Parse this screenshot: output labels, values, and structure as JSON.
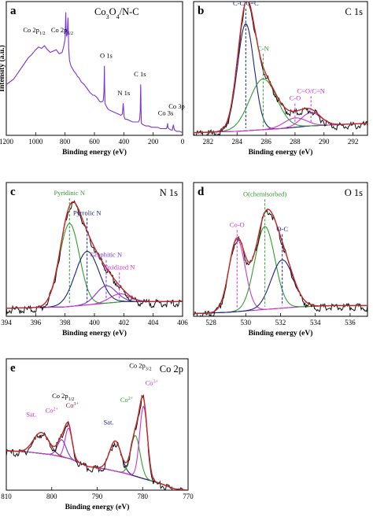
{
  "chart_data": [
    {
      "type": "line",
      "panel_label": "a",
      "title": "Co3O4/N-C",
      "xlabel": "Binding energy (eV)",
      "ylabel": "Intensity (a.u.)",
      "xlim": [
        1200,
        0
      ],
      "x_ticks": [
        1200,
        1000,
        800,
        600,
        400,
        200,
        0
      ],
      "y_ticks_shown": false,
      "series": [
        {
          "color": "#7a33d6",
          "shape": "survey",
          "x": [
            1200,
            1150,
            1100,
            1050,
            1030,
            1000,
            980,
            960,
            940,
            920,
            900,
            880,
            860,
            840,
            820,
            810,
            800,
            795,
            793,
            790,
            785,
            780,
            775,
            770,
            760,
            740,
            725,
            715,
            705,
            690,
            670,
            650,
            630,
            610,
            600,
            590,
            580,
            570,
            560,
            550,
            540,
            535,
            532,
            531,
            528,
            520,
            510,
            500,
            480,
            460,
            440,
            420,
            410,
            404,
            400,
            398,
            395,
            390,
            380,
            360,
            340,
            320,
            300,
            292,
            288,
            285,
            283,
            280,
            270,
            250,
            230,
            210,
            190,
            170,
            150,
            140,
            130,
            120,
            110,
            104,
            101,
            100,
            95,
            80,
            70,
            62,
            60,
            55,
            40,
            20,
            0
          ],
          "y": [
            0.38,
            0.42,
            0.5,
            0.58,
            0.6,
            0.64,
            0.66,
            0.65,
            0.67,
            0.64,
            0.62,
            0.63,
            0.64,
            0.61,
            0.62,
            0.66,
            0.72,
            0.92,
            0.8,
            0.74,
            0.76,
            0.88,
            0.65,
            0.56,
            0.52,
            0.48,
            0.46,
            0.44,
            0.43,
            0.4,
            0.38,
            0.35,
            0.32,
            0.3,
            0.3,
            0.29,
            0.28,
            0.26,
            0.25,
            0.25,
            0.26,
            0.32,
            0.52,
            0.4,
            0.24,
            0.22,
            0.2,
            0.19,
            0.18,
            0.17,
            0.16,
            0.15,
            0.16,
            0.24,
            0.18,
            0.14,
            0.13,
            0.12,
            0.12,
            0.11,
            0.1,
            0.1,
            0.1,
            0.12,
            0.18,
            0.38,
            0.2,
            0.09,
            0.08,
            0.07,
            0.07,
            0.06,
            0.06,
            0.06,
            0.05,
            0.05,
            0.05,
            0.05,
            0.05,
            0.07,
            0.09,
            0.06,
            0.05,
            0.04,
            0.04,
            0.08,
            0.06,
            0.04,
            0.03,
            0.03,
            0.02
          ]
        }
      ],
      "annotations": [
        {
          "text": "Co 2p",
          "sub": "1/2",
          "x": 1010,
          "y": 0.77
        },
        {
          "text": "Co 2p",
          "sub": "3/2",
          "x": 820,
          "y": 0.77
        },
        {
          "text": "O 1s",
          "x": 520,
          "y": 0.58
        },
        {
          "text": "N 1s",
          "x": 400,
          "y": 0.3
        },
        {
          "text": "C 1s",
          "x": 290,
          "y": 0.44
        },
        {
          "text": "Co 3s",
          "x": 115,
          "y": 0.15
        },
        {
          "text": "Co 3p",
          "x": 40,
          "y": 0.2
        }
      ]
    },
    {
      "type": "line",
      "panel_label": "b",
      "title": "C 1s",
      "xlabel": "Binding energy (eV)",
      "xlim": [
        281,
        293
      ],
      "x_ticks": [
        282,
        284,
        286,
        288,
        290,
        292
      ],
      "y_ticks_shown": false,
      "background": {
        "x": [
          281,
          284,
          287,
          289,
          291,
          293
        ],
        "y": [
          0.02,
          0.03,
          0.05,
          0.07,
          0.08,
          0.09
        ]
      },
      "series": [
        {
          "type": "gaussian",
          "center": 284.6,
          "amplitude": 0.8,
          "fwhm": 1.35,
          "color": "#1a237e"
        },
        {
          "type": "gaussian",
          "center": 285.8,
          "amplitude": 0.38,
          "fwhm": 2.2,
          "color": "#2e9e2e"
        },
        {
          "type": "gaussian",
          "center": 288.0,
          "amplitude": 0.07,
          "fwhm": 1.8,
          "color": "#cc33cc"
        },
        {
          "type": "gaussian",
          "center": 289.1,
          "amplitude": 0.1,
          "fwhm": 1.6,
          "color": "#cc33cc"
        }
      ],
      "markers": [
        {
          "text": "C-C/C=C",
          "x": 284.6,
          "color": "#1a237e"
        },
        {
          "text": "C-N",
          "x": 285.8,
          "color": "#2e9e2e"
        },
        {
          "text": "C-O",
          "x": 288.0,
          "color": "#cc33cc"
        },
        {
          "text": "C=O/C=N",
          "x": 289.1,
          "color": "#cc33cc"
        }
      ]
    },
    {
      "type": "line",
      "panel_label": "c",
      "title": "N 1s",
      "xlabel": "Binding energy (eV)",
      "xlim": [
        394,
        406
      ],
      "x_ticks": [
        394,
        396,
        398,
        400,
        402,
        404,
        406
      ],
      "y_ticks_shown": false,
      "background": {
        "x": [
          394,
          398,
          400,
          402,
          404,
          406
        ],
        "y": [
          0.06,
          0.07,
          0.09,
          0.11,
          0.11,
          0.11
        ]
      },
      "series": [
        {
          "type": "gaussian",
          "center": 398.3,
          "amplitude": 0.62,
          "fwhm": 1.6,
          "color": "#2e9e2e"
        },
        {
          "type": "gaussian",
          "center": 399.5,
          "amplitude": 0.4,
          "fwhm": 1.9,
          "color": "#1a237e"
        },
        {
          "type": "gaussian",
          "center": 400.8,
          "amplitude": 0.13,
          "fwhm": 1.6,
          "color": "#7a33d6"
        },
        {
          "type": "gaussian",
          "center": 401.7,
          "amplitude": 0.06,
          "fwhm": 1.6,
          "color": "#cc33cc"
        }
      ],
      "markers": [
        {
          "text": "Pyridinic N",
          "x": 398.3,
          "color": "#2e9e2e"
        },
        {
          "text": "Pyrrolic N",
          "x": 399.5,
          "color": "#1a237e"
        },
        {
          "text": "Graphitic N",
          "x": 400.8,
          "color": "#7a33d6"
        },
        {
          "text": "Oxidized N",
          "x": 401.7,
          "color": "#cc33cc"
        }
      ]
    },
    {
      "type": "line",
      "panel_label": "d",
      "title": "O 1s",
      "xlabel": "Binding energy (eV)",
      "xlim": [
        527,
        537
      ],
      "x_ticks": [
        528,
        530,
        532,
        534,
        536
      ],
      "y_ticks_shown": false,
      "background": {
        "x": [
          527,
          529,
          531,
          533,
          535,
          537
        ],
        "y": [
          0.02,
          0.03,
          0.05,
          0.07,
          0.08,
          0.08
        ]
      },
      "series": [
        {
          "type": "gaussian",
          "center": 529.5,
          "amplitude": 0.54,
          "fwhm": 1.1,
          "color": "#cc33cc"
        },
        {
          "type": "gaussian",
          "center": 531.1,
          "amplitude": 0.62,
          "fwhm": 1.35,
          "color": "#2e9e2e"
        },
        {
          "type": "gaussian",
          "center": 532.1,
          "amplitude": 0.36,
          "fwhm": 1.5,
          "color": "#1a237e"
        }
      ],
      "markers": [
        {
          "text": "Co-O",
          "x": 529.5,
          "color": "#cc33cc"
        },
        {
          "text": "O(chemisorbed)",
          "x": 531.1,
          "color": "#2e9e2e"
        },
        {
          "text": "O-C",
          "x": 532.1,
          "color": "#1a237e"
        }
      ]
    },
    {
      "type": "line",
      "panel_label": "e",
      "title": "Co 2p",
      "xlabel": "Binding energy (eV)",
      "xlim": [
        810,
        770
      ],
      "x_ticks": [
        810,
        800,
        790,
        780,
        770
      ],
      "y_ticks_shown": false,
      "background": {
        "x": [
          810,
          805,
          800,
          796,
          792,
          788,
          784,
          780,
          776,
          773,
          770
        ],
        "y": [
          0.3,
          0.29,
          0.27,
          0.24,
          0.18,
          0.16,
          0.13,
          0.09,
          0.05,
          0.01,
          0.0
        ]
      },
      "series": [
        {
          "type": "gaussian",
          "center": 802.3,
          "amplitude": 0.16,
          "fwhm": 4.0,
          "color": "#8b1a1a"
        },
        {
          "type": "gaussian",
          "center": 796.3,
          "amplitude": 0.23,
          "fwhm": 1.8,
          "color": "#cc33cc"
        },
        {
          "type": "gaussian",
          "center": 797.8,
          "amplitude": 0.13,
          "fwhm": 2.2,
          "color": "#7a33d6"
        },
        {
          "type": "gaussian",
          "center": 786.0,
          "amplitude": 0.23,
          "fwhm": 3.0,
          "color": "#1a237e"
        },
        {
          "type": "gaussian",
          "center": 781.6,
          "amplitude": 0.31,
          "fwhm": 2.4,
          "color": "#2e9e2e"
        },
        {
          "type": "gaussian",
          "center": 779.8,
          "amplitude": 0.55,
          "fwhm": 2.0,
          "color": "#cc33cc"
        }
      ],
      "annotations": [
        {
          "text": "Sat.",
          "x": 804.5,
          "y": 0.56,
          "color": "#cc33cc"
        },
        {
          "text": "Co",
          "sup": "2+",
          "x": 800.0,
          "y": 0.59,
          "color": "#cc33cc"
        },
        {
          "text": "Co 2p",
          "sub": "1/2",
          "x": 797.5,
          "y": 0.7,
          "color": "#000000"
        },
        {
          "text": "Co",
          "sup": "3+",
          "x": 795.5,
          "y": 0.63,
          "color": "#8b1a1a"
        },
        {
          "text": "Sat.",
          "x": 787.5,
          "y": 0.5,
          "color": "#1a237e"
        },
        {
          "text": "Co",
          "sup": "2+",
          "x": 783.5,
          "y": 0.67,
          "color": "#2e9e2e"
        },
        {
          "text": "Co 2p",
          "sub": "3/2",
          "x": 780.5,
          "y": 0.93,
          "color": "#000000"
        },
        {
          "text": "Co",
          "sup": "3+",
          "x": 778.0,
          "y": 0.8,
          "color": "#cc33cc"
        }
      ]
    }
  ]
}
